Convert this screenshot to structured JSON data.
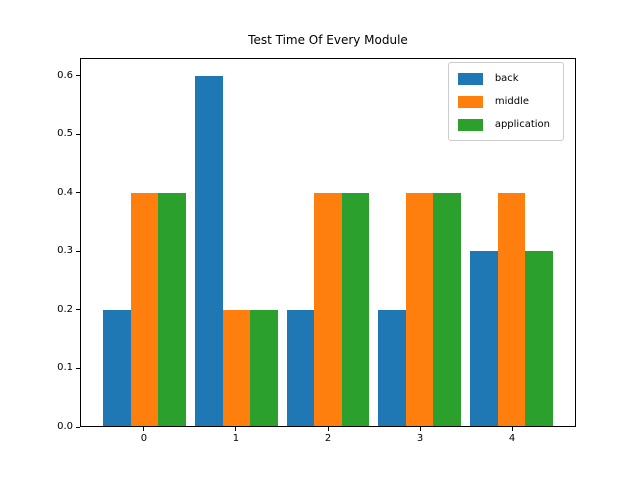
{
  "figure": {
    "background": "#ffffff",
    "text_color": "#000000",
    "legend_border_color": "#cccccc"
  },
  "chart_data": {
    "type": "bar",
    "title": "Test Time Of Every Module",
    "xlabel": "",
    "ylabel": "",
    "categories": [
      "0",
      "1",
      "2",
      "3",
      "4"
    ],
    "series": [
      {
        "name": "back",
        "color": "#1f77b4",
        "values": [
          0.2,
          0.6,
          0.2,
          0.2,
          0.3
        ]
      },
      {
        "name": "middle",
        "color": "#ff7f0e",
        "values": [
          0.4,
          0.2,
          0.4,
          0.4,
          0.4
        ]
      },
      {
        "name": "application",
        "color": "#2ca02c",
        "values": [
          0.4,
          0.2,
          0.4,
          0.4,
          0.3
        ]
      }
    ],
    "bar_width": 0.3,
    "ylim": [
      0,
      0.63
    ],
    "xlim": [
      -0.695,
      4.695
    ],
    "yticks": [
      "0.0",
      "0.1",
      "0.2",
      "0.3",
      "0.4",
      "0.5",
      "0.6"
    ],
    "xticks": [
      "0",
      "1",
      "2",
      "3",
      "4"
    ],
    "grid": false,
    "legend": {
      "position": "upper right"
    }
  }
}
